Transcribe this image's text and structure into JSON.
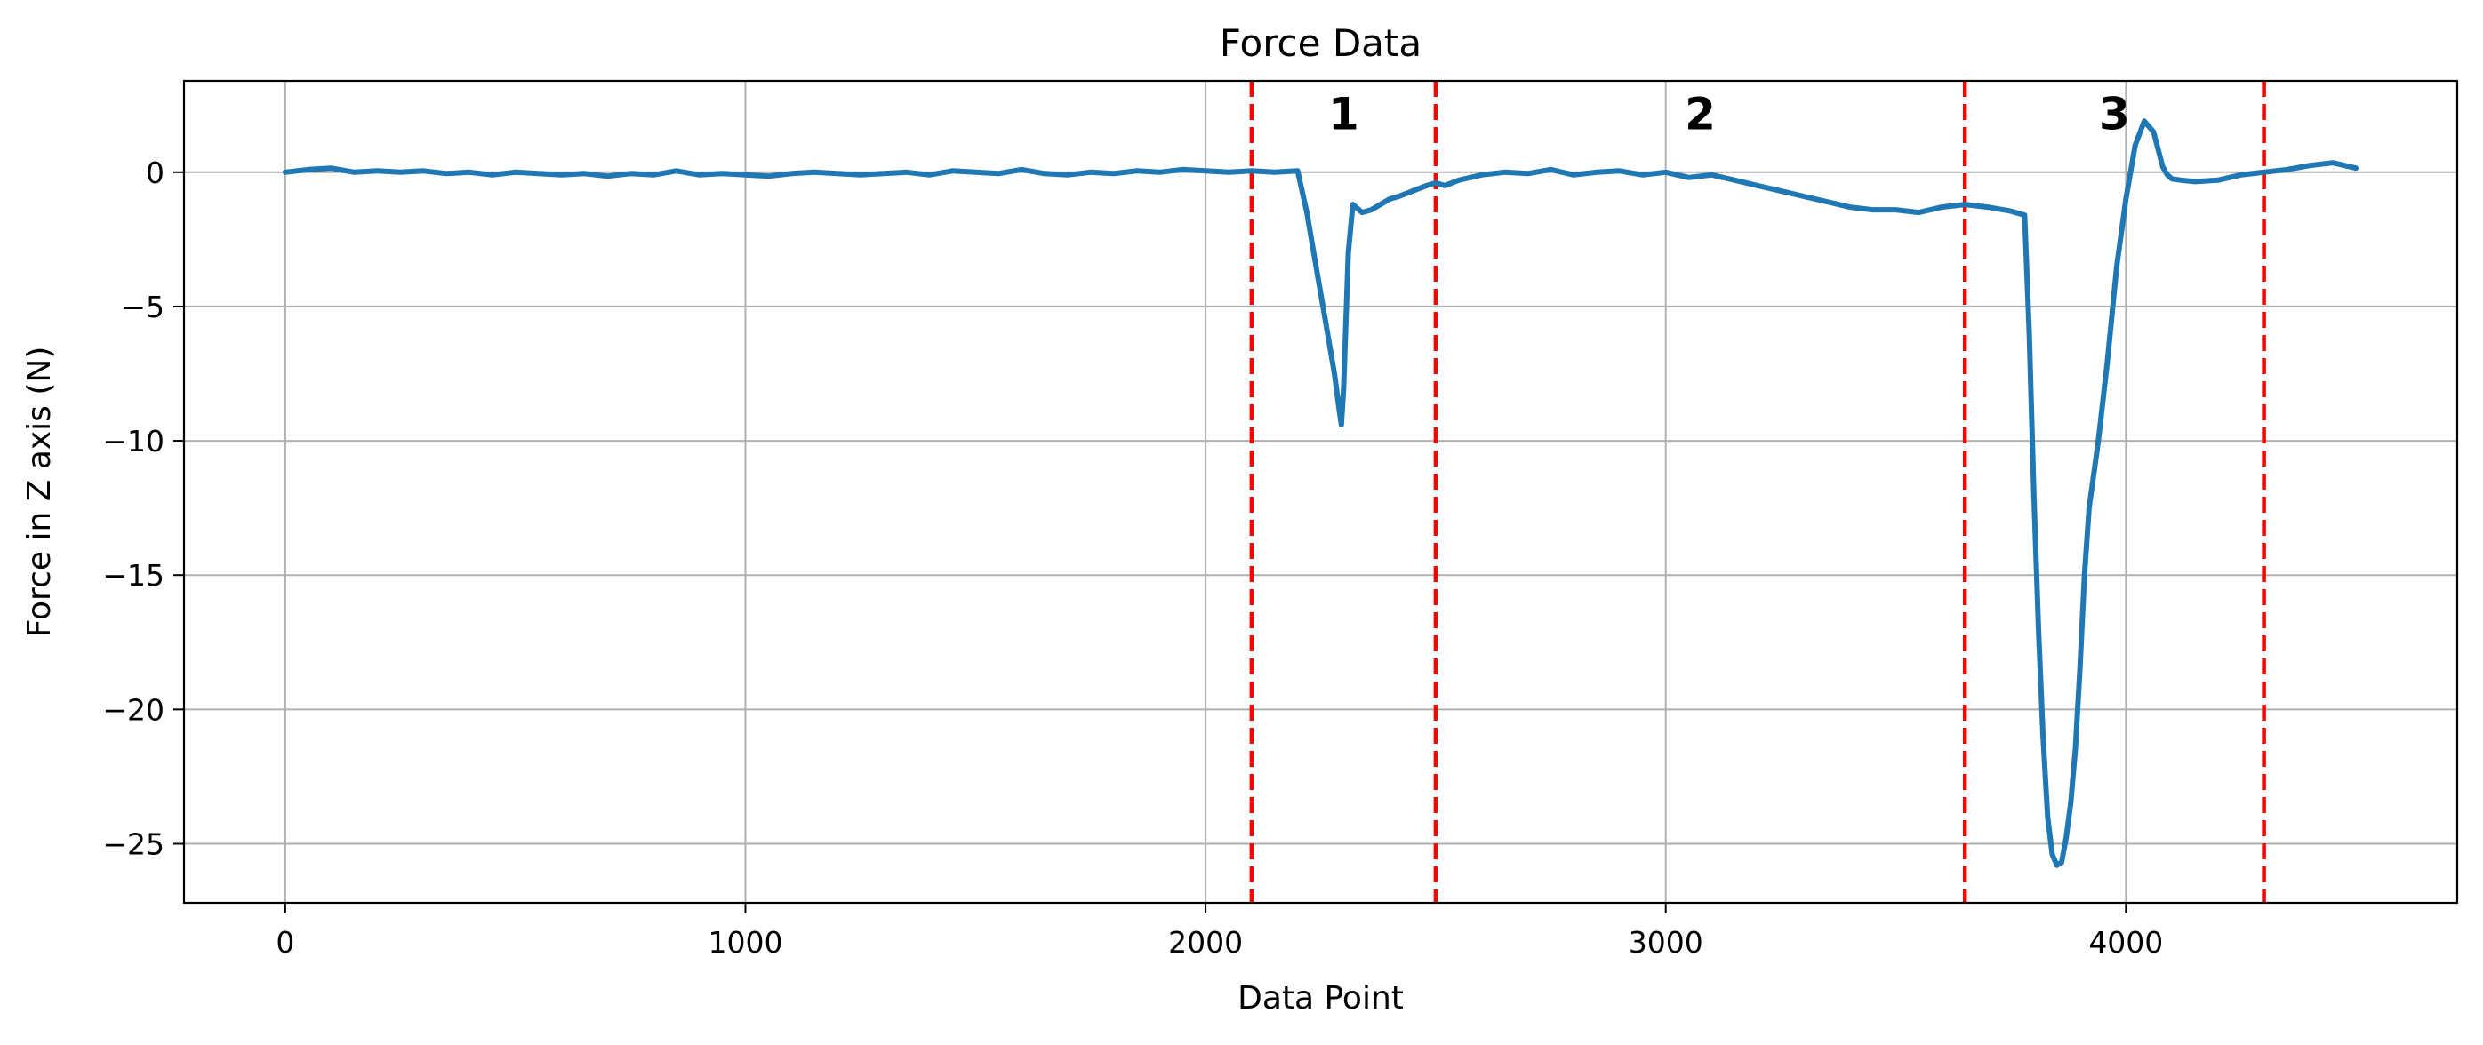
{
  "chart_data": {
    "type": "line",
    "title": "Force Data",
    "xlabel": "Data Point",
    "ylabel": "Force in Z axis (N)",
    "xlim": [
      -220,
      4720
    ],
    "ylim": [
      -27.2,
      3.4
    ],
    "xticks": [
      0,
      1000,
      2000,
      3000,
      4000
    ],
    "xtick_labels": [
      "0",
      "1000",
      "2000",
      "3000",
      "4000"
    ],
    "yticks": [
      0,
      -5,
      -10,
      -15,
      -20,
      -25
    ],
    "ytick_labels": [
      "0",
      "−5",
      "−10",
      "−15",
      "−20",
      "−25"
    ],
    "grid": true,
    "line_color": "#1f77b4",
    "marker_color": "#d62728",
    "series": [
      {
        "x": [
          0,
          50,
          100,
          150,
          200,
          250,
          300,
          350,
          400,
          450,
          500,
          550,
          600,
          650,
          700,
          750,
          800,
          850,
          900,
          950,
          1000,
          1050,
          1100,
          1150,
          1200,
          1250,
          1300,
          1350,
          1400,
          1450,
          1500,
          1550,
          1600,
          1650,
          1700,
          1750,
          1800,
          1850,
          1900,
          1950,
          2000,
          2050,
          2100,
          2150,
          2200,
          2220,
          2240,
          2260,
          2280,
          2290,
          2295,
          2300,
          2310,
          2320,
          2340,
          2360,
          2380,
          2400,
          2420,
          2450,
          2480,
          2500,
          2520,
          2550,
          2600,
          2650,
          2700,
          2750,
          2800,
          2850,
          2900,
          2950,
          3000,
          3050,
          3100,
          3150,
          3200,
          3250,
          3300,
          3350,
          3400,
          3450,
          3500,
          3550,
          3600,
          3650,
          3700,
          3750,
          3780,
          3790,
          3800,
          3810,
          3820,
          3830,
          3840,
          3850,
          3860,
          3870,
          3880,
          3890,
          3900,
          3910,
          3920,
          3940,
          3960,
          3980,
          4000,
          4020,
          4040,
          4060,
          4080,
          4090,
          4100,
          4120,
          4150,
          4200,
          4250,
          4300,
          4350,
          4400,
          4450,
          4500
        ],
        "y": [
          0.0,
          0.1,
          0.15,
          0.0,
          0.05,
          0.0,
          0.05,
          -0.05,
          0.0,
          -0.1,
          0.0,
          -0.05,
          -0.1,
          -0.05,
          -0.15,
          -0.05,
          -0.1,
          0.05,
          -0.1,
          -0.05,
          -0.1,
          -0.15,
          -0.05,
          0.0,
          -0.05,
          -0.1,
          -0.05,
          0.0,
          -0.1,
          0.05,
          0.0,
          -0.05,
          0.1,
          -0.05,
          -0.1,
          0.0,
          -0.05,
          0.05,
          0.0,
          0.1,
          0.05,
          0.0,
          0.05,
          0.0,
          0.05,
          -1.5,
          -3.5,
          -5.5,
          -7.5,
          -8.8,
          -9.4,
          -8.0,
          -3.0,
          -1.2,
          -1.5,
          -1.4,
          -1.2,
          -1.0,
          -0.9,
          -0.7,
          -0.5,
          -0.4,
          -0.5,
          -0.3,
          -0.1,
          0.0,
          -0.05,
          0.1,
          -0.1,
          0.0,
          0.05,
          -0.1,
          0.0,
          -0.2,
          -0.1,
          -0.3,
          -0.5,
          -0.7,
          -0.9,
          -1.1,
          -1.3,
          -1.4,
          -1.4,
          -1.5,
          -1.3,
          -1.2,
          -1.3,
          -1.45,
          -1.6,
          -6.0,
          -12.0,
          -17.0,
          -21.0,
          -24.0,
          -25.4,
          -25.8,
          -25.7,
          -24.8,
          -23.5,
          -21.5,
          -18.5,
          -15.0,
          -12.5,
          -10.0,
          -7.0,
          -3.5,
          -1.0,
          1.0,
          1.9,
          1.5,
          0.2,
          -0.1,
          -0.25,
          -0.3,
          -0.35,
          -0.3,
          -0.1,
          0.0,
          0.1,
          0.25,
          0.35,
          0.15
        ]
      }
    ],
    "vlines": [
      2100,
      2500,
      3650,
      4300
    ],
    "vline_color": "#ff0000",
    "annotations": [
      {
        "text": "1",
        "x": 2300,
        "y": 1.6
      },
      {
        "text": "2",
        "x": 3075,
        "y": 1.6
      },
      {
        "text": "3",
        "x": 3975,
        "y": 1.6
      }
    ]
  }
}
